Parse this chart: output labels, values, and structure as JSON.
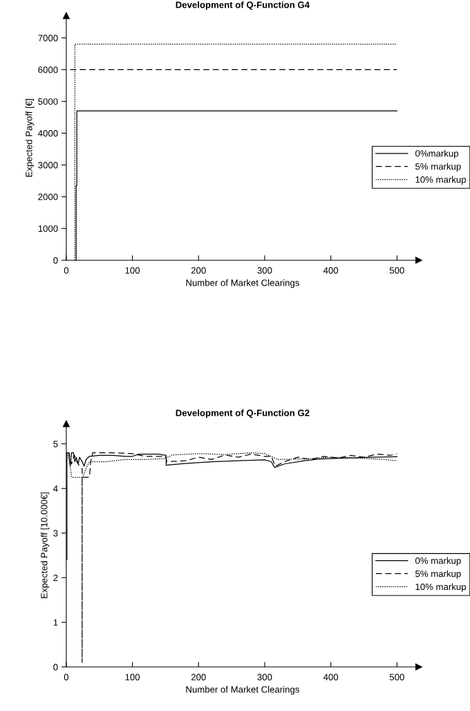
{
  "chart_data": [
    {
      "type": "line",
      "title": "Development of Q-Function G4",
      "xlabel": "Number of Market Clearings",
      "ylabel": "Expected Payoff [€]",
      "xlim": [
        0,
        533
      ],
      "ylim": [
        0,
        7700
      ],
      "xticks": [
        0,
        100,
        200,
        300,
        400,
        500
      ],
      "yticks": [
        0,
        1000,
        2000,
        3000,
        4000,
        5000,
        6000,
        7000
      ],
      "legend": "right",
      "grid": false,
      "series": [
        {
          "name": "0%markup",
          "color": "#000000",
          "line_style": "solid",
          "x": [
            15,
            15,
            16,
            16,
            500
          ],
          "values": [
            0,
            2350,
            2350,
            4700,
            4700
          ]
        },
        {
          "name": "5% markup",
          "color": "#000000",
          "line_style": "dashed",
          "x": [
            6,
            500
          ],
          "values": [
            6000,
            6000
          ]
        },
        {
          "name": "10% markup",
          "color": "#000000",
          "line_style": "dotted",
          "x": [
            13,
            13,
            15,
            500
          ],
          "values": [
            0,
            6800,
            6800,
            6800
          ]
        }
      ]
    },
    {
      "type": "line",
      "title": "Development of Q-Function G2",
      "xlabel": "Number of Market Clearings",
      "ylabel": "Expected Payoff [10.000€]",
      "xlim": [
        0,
        533
      ],
      "ylim": [
        0,
        5.45
      ],
      "xticks": [
        0,
        100,
        200,
        300,
        400,
        500
      ],
      "yticks": [
        0,
        1,
        2,
        3,
        4,
        5
      ],
      "legend": "right",
      "grid": false,
      "series": [
        {
          "name": "0% markup",
          "color": "#000000",
          "line_style": "solid",
          "x": [
            1,
            1,
            4,
            6,
            8,
            11,
            13,
            15,
            18,
            20,
            24,
            27,
            30,
            35,
            50,
            70,
            90,
            100,
            110,
            130,
            140,
            151,
            151,
            180,
            220,
            260,
            300,
            310,
            315,
            330,
            360,
            383,
            420,
            460,
            500
          ],
          "values": [
            2.4,
            4.8,
            4.8,
            4.5,
            4.8,
            4.8,
            4.6,
            4.7,
            4.55,
            4.7,
            4.6,
            4.5,
            4.65,
            4.72,
            4.74,
            4.74,
            4.72,
            4.72,
            4.77,
            4.77,
            4.77,
            4.74,
            4.52,
            4.56,
            4.6,
            4.62,
            4.64,
            4.6,
            4.47,
            4.55,
            4.62,
            4.66,
            4.68,
            4.7,
            4.71
          ]
        },
        {
          "name": "5% markup",
          "color": "#000000",
          "line_style": "dashed",
          "x": [
            1,
            4,
            8,
            12,
            16,
            20,
            24,
            24,
            24,
            35,
            37,
            40,
            70,
            100,
            120,
            150,
            152,
            180,
            200,
            220,
            240,
            260,
            280,
            300,
            310,
            316,
            330,
            350,
            370,
            390,
            410,
            430,
            450,
            470,
            490,
            500
          ],
          "values": [
            4.8,
            4.8,
            4.55,
            4.75,
            4.6,
            4.5,
            4.45,
            0.1,
            4.25,
            4.25,
            4.6,
            4.8,
            4.8,
            4.78,
            4.72,
            4.72,
            4.6,
            4.62,
            4.7,
            4.65,
            4.75,
            4.7,
            4.77,
            4.72,
            4.72,
            4.5,
            4.6,
            4.7,
            4.65,
            4.72,
            4.68,
            4.74,
            4.7,
            4.77,
            4.74,
            4.78
          ]
        },
        {
          "name": "10% markup",
          "color": "#000000",
          "line_style": "dotted",
          "x": [
            1,
            5,
            8,
            25,
            30,
            35,
            60,
            90,
            120,
            150,
            160,
            200,
            240,
            280,
            300,
            320,
            360,
            400,
            440,
            480,
            500
          ],
          "values": [
            4.8,
            4.6,
            4.25,
            4.25,
            4.45,
            4.6,
            4.6,
            4.65,
            4.65,
            4.67,
            4.75,
            4.78,
            4.76,
            4.8,
            4.78,
            4.65,
            4.66,
            4.7,
            4.68,
            4.65,
            4.62
          ]
        }
      ]
    }
  ]
}
